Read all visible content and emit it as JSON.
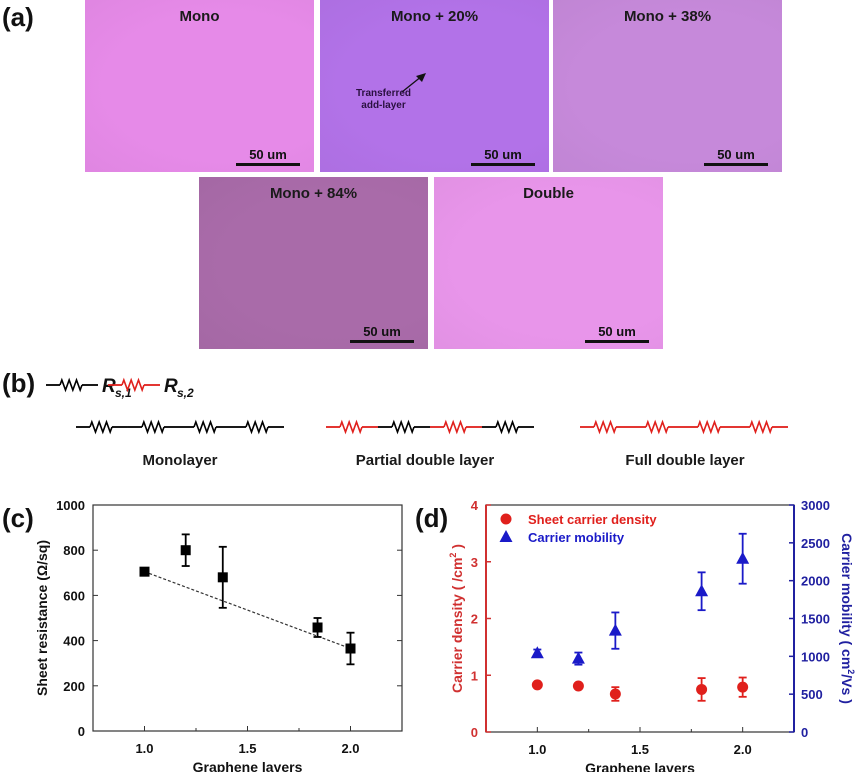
{
  "panel_a": {
    "label": "(a)",
    "images": [
      {
        "title": "Mono",
        "scale": "50 um",
        "color": "#e68ae8"
      },
      {
        "title": "Mono + 20%",
        "scale": "50 um",
        "color": "#b272e8",
        "note": [
          "Transferred",
          "add-layer"
        ]
      },
      {
        "title": "Mono + 38%",
        "scale": "50 um",
        "color": "#c689da"
      },
      {
        "title": "Mono + 84%",
        "scale": "50 um",
        "color": "#a96ba9"
      },
      {
        "title": "Double",
        "scale": "50 um",
        "color": "#e895ea"
      }
    ]
  },
  "panel_b": {
    "label": "(b)",
    "legend": [
      {
        "symbol": "R",
        "sub": "s,1",
        "color": "#000000"
      },
      {
        "symbol": "R",
        "sub": "s,2",
        "color": "#e0201c"
      }
    ],
    "circuits": [
      {
        "label": "Monolayer",
        "resistors": [
          "#000000",
          "#000000",
          "#000000",
          "#000000"
        ]
      },
      {
        "label": "Partial double layer",
        "resistors": [
          "#e0201c",
          "#000000",
          "#e0201c",
          "#000000"
        ]
      },
      {
        "label": "Full double layer",
        "resistors": [
          "#e0201c",
          "#e0201c",
          "#e0201c",
          "#e0201c"
        ]
      }
    ]
  },
  "chart_data": [
    {
      "panel": "(c)",
      "type": "scatter",
      "xlabel": "Graphene layers",
      "ylabel": "Sheet resistance (Ω/sq)",
      "xlim": [
        0.75,
        2.25
      ],
      "ylim": [
        0,
        1000
      ],
      "xticks": [
        "1.0",
        "1.5",
        "2.0"
      ],
      "xtick_values": [
        1.0,
        1.5,
        2.0
      ],
      "yticks": [
        "0",
        "200",
        "400",
        "600",
        "800",
        "1000"
      ],
      "ytick_values": [
        0,
        200,
        400,
        600,
        800,
        1000
      ],
      "series": [
        {
          "name": "Sheet resistance",
          "marker": "square",
          "color": "#000000",
          "x": [
            1.0,
            1.2,
            1.38,
            1.84,
            2.0
          ],
          "y": [
            705,
            800,
            680,
            458,
            365
          ],
          "err": [
            10,
            70,
            135,
            42,
            70
          ]
        }
      ],
      "fit": {
        "style": "dashed",
        "x": [
          1.0,
          2.0
        ],
        "y": [
          705,
          365
        ]
      }
    },
    {
      "panel": "(d)",
      "type": "scatter",
      "xlabel": "Graphene layers",
      "ylabel_left": "Carrier density ( /cm",
      "ylabel_left_sup": "2",
      "ylabel_left_end": " )",
      "ylabel_right": "Carrier mobility ( cm",
      "ylabel_right_sup": "2",
      "ylabel_right_end": "/Vs )",
      "xlim": [
        0.75,
        2.25
      ],
      "ylim_left": [
        0,
        4
      ],
      "ylim_right": [
        0,
        3000
      ],
      "xticks": [
        "1.0",
        "1.5",
        "2.0"
      ],
      "xtick_values": [
        1.0,
        1.5,
        2.0
      ],
      "yticks_left": [
        "0",
        "1",
        "2",
        "3",
        "4"
      ],
      "ytick_left_values": [
        0,
        1,
        2,
        3,
        4
      ],
      "yticks_right": [
        "0",
        "500",
        "1000",
        "1500",
        "2000",
        "2500",
        "3000"
      ],
      "ytick_right_values": [
        0,
        500,
        1000,
        1500,
        2000,
        2500,
        3000
      ],
      "legend_position": "top-left",
      "series": [
        {
          "name": "Sheet carrier density",
          "axis": "left",
          "marker": "circle",
          "color": "#e0201c",
          "x": [
            1.0,
            1.2,
            1.38,
            1.8,
            2.0
          ],
          "y": [
            0.83,
            0.81,
            0.67,
            0.75,
            0.79
          ],
          "err": [
            0.03,
            0.03,
            0.12,
            0.2,
            0.17
          ]
        },
        {
          "name": "Carrier mobility",
          "axis": "right",
          "marker": "triangle",
          "color": "#1a1ac8",
          "x": [
            1.0,
            1.2,
            1.38,
            1.8,
            2.0
          ],
          "y": [
            1040,
            970,
            1340,
            1860,
            2290
          ],
          "err": [
            50,
            80,
            240,
            250,
            330
          ]
        }
      ]
    }
  ]
}
